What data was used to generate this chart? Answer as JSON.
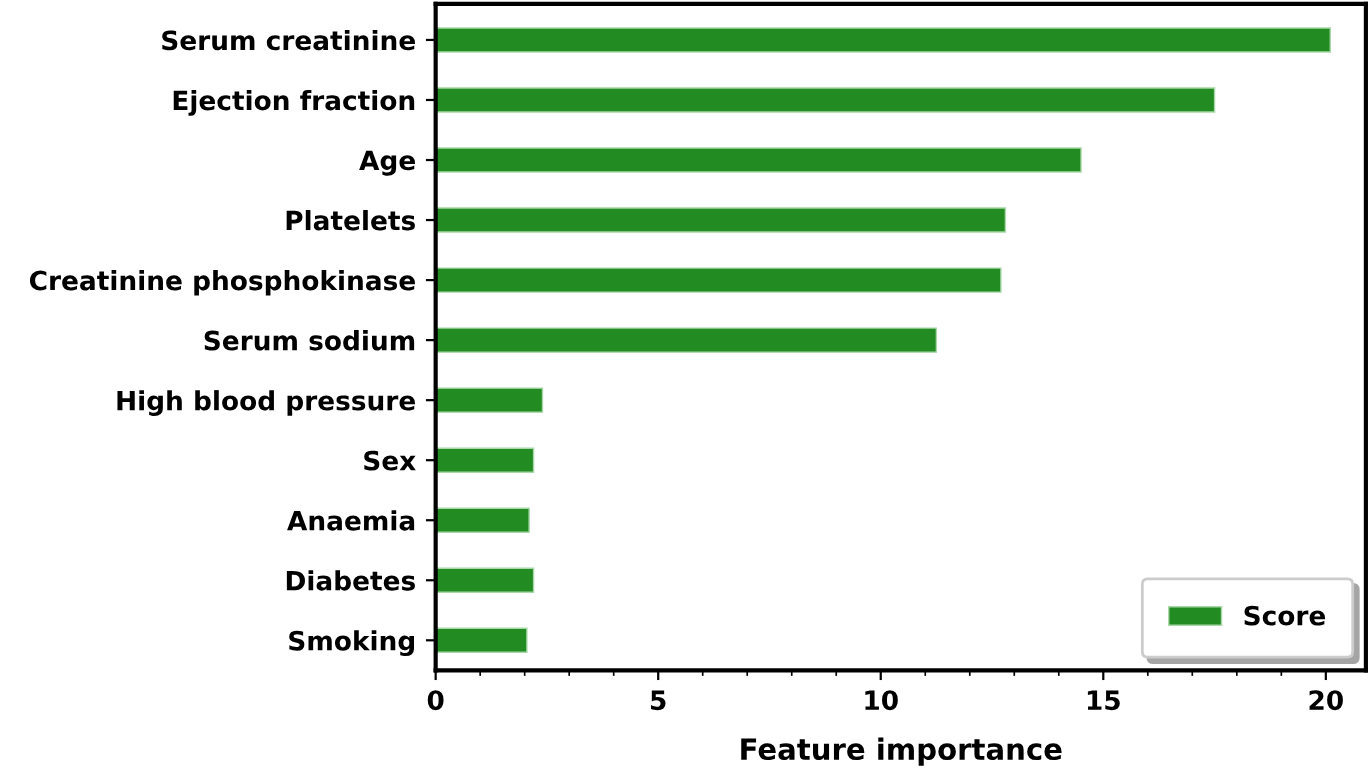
{
  "chart_data": {
    "type": "bar",
    "orientation": "horizontal",
    "categories": [
      "Serum creatinine",
      "Ejection fraction",
      "Age",
      "Platelets",
      "Creatinine phosphokinase",
      "Serum sodium",
      "High blood pressure",
      "Sex",
      "Anaemia",
      "Diabetes",
      "Smoking"
    ],
    "series": [
      {
        "name": "Score",
        "color": "#228b22",
        "values": [
          20.1,
          17.5,
          14.5,
          12.8,
          12.7,
          11.25,
          2.4,
          2.2,
          2.1,
          2.2,
          2.05
        ]
      }
    ],
    "xlabel": "Feature importance",
    "xlim": [
      0,
      20.9
    ],
    "xticks": [
      0,
      5,
      10,
      15,
      20
    ],
    "grid": false,
    "legend": "bottom right"
  }
}
